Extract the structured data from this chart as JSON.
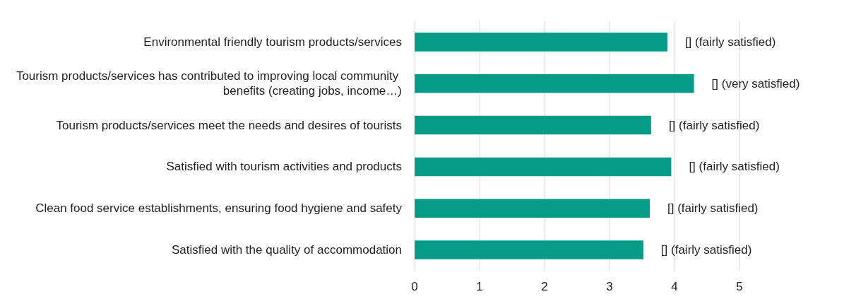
{
  "chart_data": {
    "type": "bar",
    "orientation": "horizontal",
    "categories": [
      "Environmental friendly tourism products/services",
      "Tourism products/services has contributed to improving local community benefits (creating jobs, income…)",
      "Tourism products/services meet the needs and desires of tourists",
      "Satisfied with tourism activities and products",
      "Clean food service establishments, ensuring food hygiene and safety",
      "Satisfied with the quality of accommodation"
    ],
    "values": [
      3.89,
      4.3,
      3.64,
      3.95,
      3.62,
      3.52
    ],
    "value_labels": [
      "[] (fairly satisfied)",
      "[] (very satisfied)",
      "[] (fairly satisfied)",
      "[] (fairly satisfied)",
      "[] (fairly satisfied)",
      "[] (fairly satisfied)"
    ],
    "color": "#069b87",
    "xlim": [
      0,
      5
    ],
    "xticks": [
      0,
      1,
      2,
      3,
      4,
      5
    ],
    "grid": "x"
  }
}
